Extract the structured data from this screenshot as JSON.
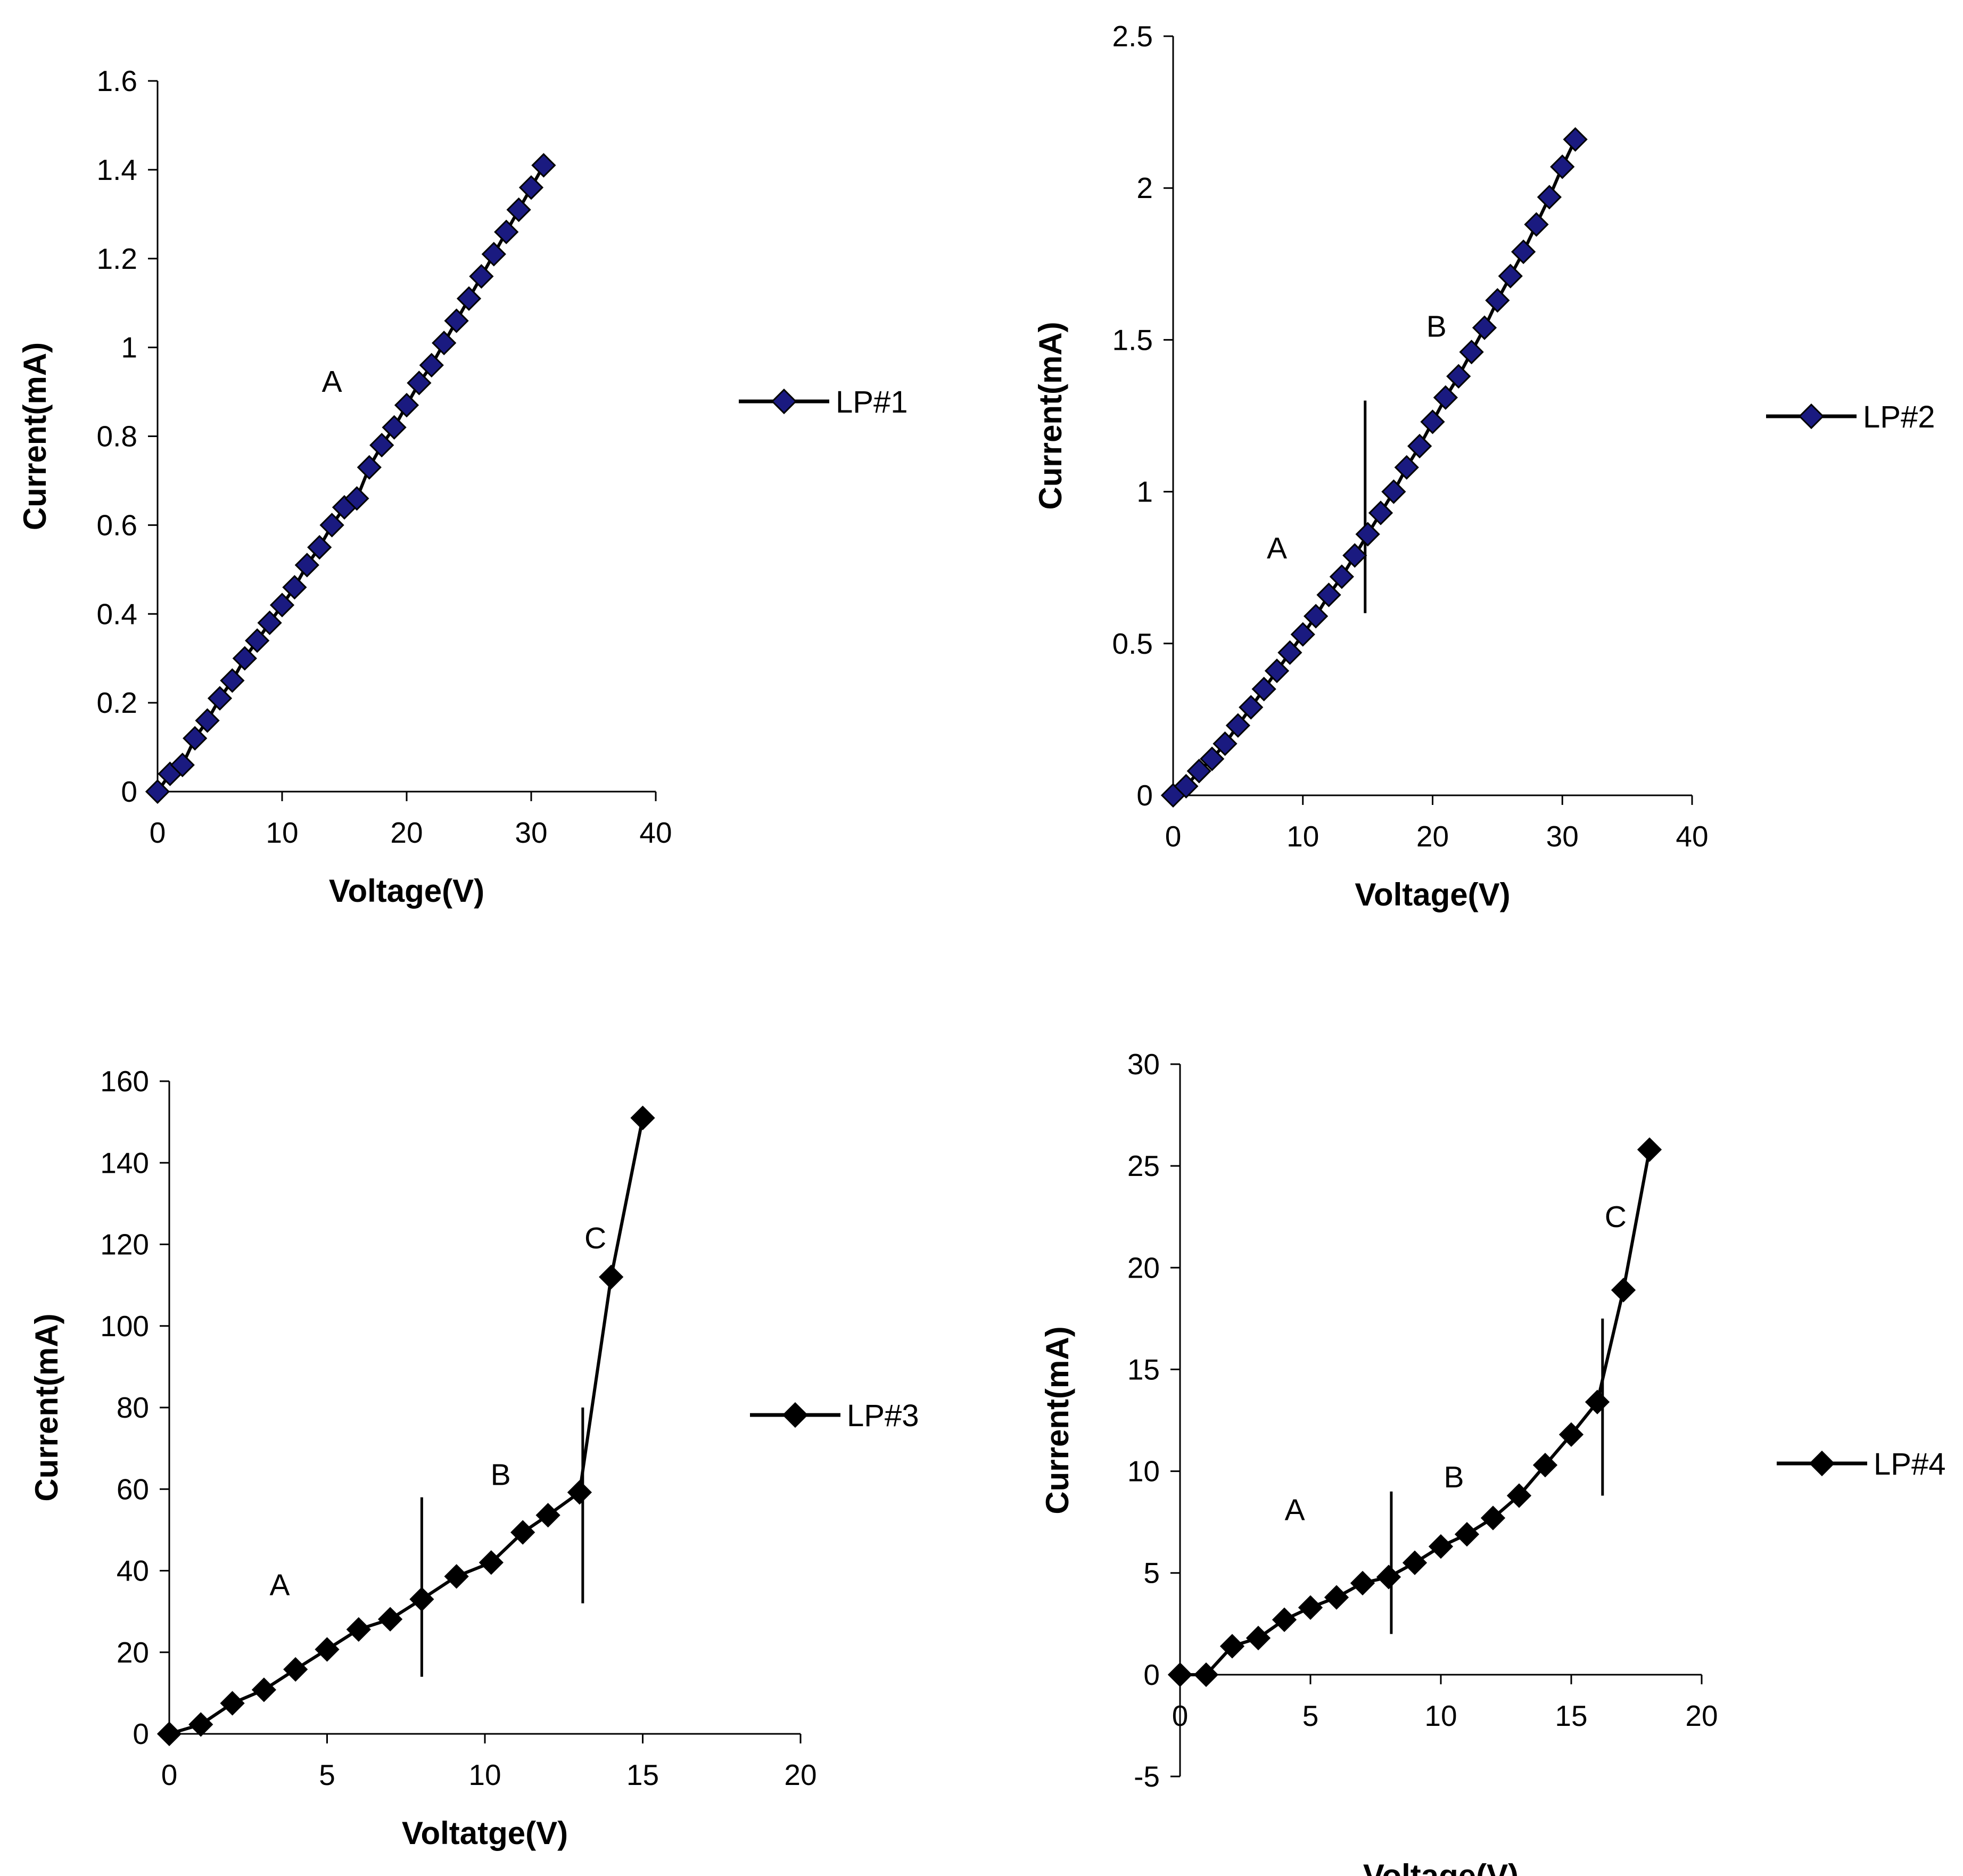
{
  "chart_data": [
    {
      "type": "line",
      "xlabel": "Voltage(V)",
      "ylabel": "Current(mA)",
      "xlim": [
        0,
        40
      ],
      "ylim": [
        0,
        1.6
      ],
      "xticks": [
        0,
        10,
        20,
        30,
        40
      ],
      "yticks": [
        0,
        0.2,
        0.4,
        0.6,
        0.8,
        1,
        1.2,
        1.4,
        1.6
      ],
      "grid": false,
      "legend_position": "right",
      "marker_color": "#1a1a80",
      "series": [
        {
          "name": "LP#1",
          "x": [
            0,
            1,
            2,
            3,
            4,
            5,
            6,
            7,
            8,
            9,
            10,
            11,
            12,
            13,
            14,
            15,
            16,
            17,
            18,
            19,
            20,
            21,
            22,
            23,
            24,
            25,
            26,
            27,
            28,
            29,
            30,
            31
          ],
          "y": [
            0,
            0.04,
            0.06,
            0.12,
            0.16,
            0.21,
            0.25,
            0.3,
            0.34,
            0.38,
            0.42,
            0.46,
            0.51,
            0.55,
            0.6,
            0.64,
            0.66,
            0.73,
            0.78,
            0.82,
            0.87,
            0.92,
            0.96,
            1.01,
            1.06,
            1.11,
            1.16,
            1.21,
            1.26,
            1.31,
            1.36,
            1.41
          ]
        }
      ],
      "annotations": [
        {
          "text": "A",
          "x": 14,
          "y": 0.9
        }
      ],
      "dividers": []
    },
    {
      "type": "line",
      "xlabel": "Voltage(V)",
      "ylabel": "Current(mA)",
      "xlim": [
        0,
        40
      ],
      "ylim": [
        0,
        2.5
      ],
      "xticks": [
        0,
        10,
        20,
        30,
        40
      ],
      "yticks": [
        0,
        0.5,
        1,
        1.5,
        2,
        2.5
      ],
      "grid": false,
      "legend_position": "right",
      "marker_color": "#1a1a80",
      "series": [
        {
          "name": "LP#2",
          "x": [
            0,
            1,
            2,
            3,
            4,
            5,
            6,
            7,
            8,
            9,
            10,
            11,
            12,
            13,
            14,
            15,
            16,
            17,
            18,
            19,
            20,
            21,
            22,
            23,
            24,
            25,
            26,
            27,
            28,
            29,
            30,
            31
          ],
          "y": [
            0,
            0.03,
            0.08,
            0.12,
            0.17,
            0.23,
            0.29,
            0.35,
            0.41,
            0.47,
            0.53,
            0.59,
            0.66,
            0.72,
            0.79,
            0.86,
            0.93,
            1.0,
            1.08,
            1.15,
            1.23,
            1.31,
            1.38,
            1.46,
            1.54,
            1.63,
            1.71,
            1.79,
            1.88,
            1.97,
            2.07,
            2.16
          ]
        }
      ],
      "annotations": [
        {
          "text": "A",
          "x": 8,
          "y": 0.78
        },
        {
          "text": "B",
          "x": 20.3,
          "y": 1.51
        }
      ],
      "dividers": [
        {
          "x": 14.8,
          "y0": 0.6,
          "y1": 1.3
        }
      ]
    },
    {
      "type": "line",
      "xlabel": "Voltatge(V)",
      "ylabel": "Current(mA)",
      "xlim": [
        0,
        20
      ],
      "ylim": [
        0,
        160
      ],
      "xticks": [
        0,
        5,
        10,
        15,
        20
      ],
      "yticks": [
        0,
        20,
        40,
        60,
        80,
        100,
        120,
        140,
        160
      ],
      "grid": false,
      "legend_position": "right",
      "marker_color": "#000000",
      "series": [
        {
          "name": "LP#3",
          "x": [
            0,
            1,
            2,
            3,
            4,
            5,
            6,
            7,
            8,
            9.1,
            10.2,
            11.2,
            12,
            13,
            14,
            15
          ],
          "y": [
            0,
            2.3,
            7.5,
            10.8,
            15.8,
            20.7,
            25.6,
            28.1,
            33,
            38.6,
            42,
            49.4,
            53.6,
            59.2,
            112,
            151
          ]
        }
      ],
      "annotations": [
        {
          "text": "A",
          "x": 3.5,
          "y": 34
        },
        {
          "text": "B",
          "x": 10.5,
          "y": 61
        },
        {
          "text": "C",
          "x": 13.5,
          "y": 119
        }
      ],
      "dividers": [
        {
          "x": 8,
          "y0": 14,
          "y1": 58
        },
        {
          "x": 13.1,
          "y0": 32,
          "y1": 80
        }
      ]
    },
    {
      "type": "line",
      "xlabel": "Voltage(V)",
      "ylabel": "Current(mA)",
      "xlim": [
        0,
        20
      ],
      "ylim": [
        -5,
        30
      ],
      "xticks": [
        0,
        5,
        10,
        15,
        20
      ],
      "yticks": [
        -5,
        0,
        5,
        10,
        15,
        20,
        25,
        30
      ],
      "grid": false,
      "legend_position": "right",
      "marker_color": "#000000",
      "series": [
        {
          "name": "LP#4",
          "x": [
            0,
            1,
            2,
            3,
            4,
            5,
            6,
            7,
            8,
            9,
            10,
            11,
            12,
            13,
            14,
            15,
            16,
            17,
            18
          ],
          "y": [
            0,
            0,
            1.4,
            1.8,
            2.7,
            3.3,
            3.8,
            4.5,
            4.8,
            5.5,
            6.3,
            6.9,
            7.7,
            8.8,
            10.3,
            11.8,
            13.4,
            18.9,
            25.8
          ]
        }
      ],
      "annotations": [
        {
          "text": "A",
          "x": 4.4,
          "y": 7.6
        },
        {
          "text": "B",
          "x": 10.5,
          "y": 9.2
        },
        {
          "text": "C",
          "x": 16.7,
          "y": 22
        }
      ],
      "dividers": [
        {
          "x": 8.1,
          "y0": 2,
          "y1": 9
        },
        {
          "x": 16.2,
          "y0": 8.8,
          "y1": 17.5
        }
      ]
    }
  ]
}
